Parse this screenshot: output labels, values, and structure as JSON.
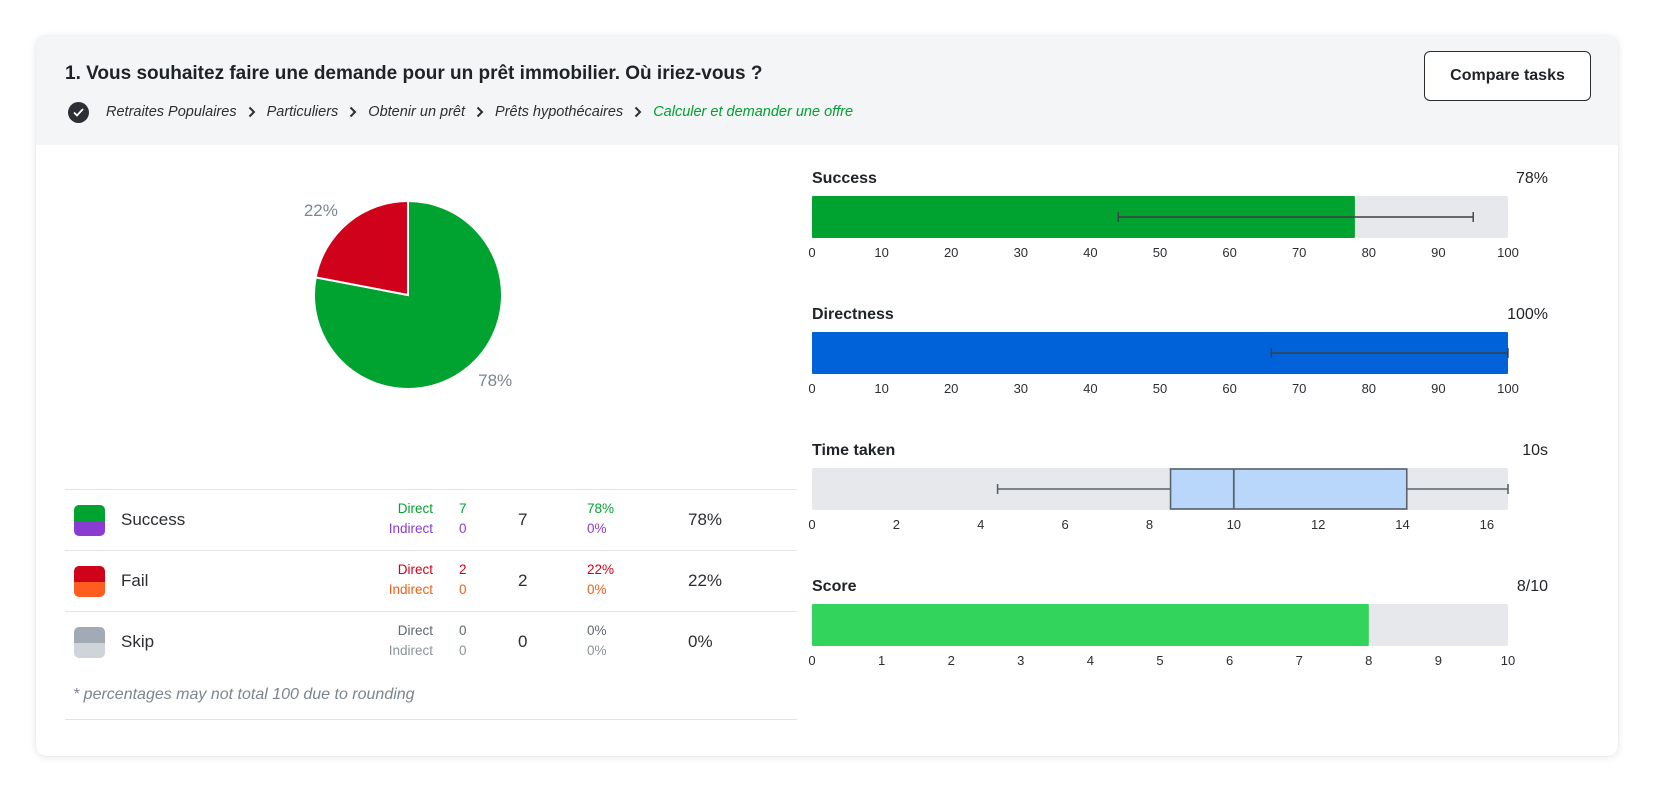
{
  "header": {
    "task_title": "1. Vous souhaitez faire une demande pour un prêt immobilier. Où iriez-vous ?",
    "compare_button": "Compare tasks",
    "breadcrumb": [
      "Retraites Populaires",
      "Particuliers",
      "Obtenir un prêt",
      "Prêts hypothécaires",
      "Calculer et demander une offre"
    ]
  },
  "colors": {
    "success_direct": "#00a32f",
    "success_indirect": "#8a3bd1",
    "fail_direct": "#d0021b",
    "fail_indirect": "#ff5d1f",
    "skip_direct": "#a2abb5",
    "skip_indirect": "#cfd4da",
    "directness": "#0062d8",
    "timebox": "#b8d7fb",
    "score": "#33d45b",
    "track": "#e6e8eb"
  },
  "legend": {
    "rows": [
      {
        "label": "Success",
        "direct_label": "Direct",
        "direct": "7",
        "indirect_label": "Indirect",
        "indirect": "0",
        "total": "7",
        "direct_pct": "78%",
        "indirect_pct": "0%",
        "pct": "78%"
      },
      {
        "label": "Fail",
        "direct_label": "Direct",
        "direct": "2",
        "indirect_label": "Indirect",
        "indirect": "0",
        "total": "2",
        "direct_pct": "22%",
        "indirect_pct": "0%",
        "pct": "22%"
      },
      {
        "label": "Skip",
        "direct_label": "Direct",
        "direct": "0",
        "indirect_label": "Indirect",
        "indirect": "0",
        "total": "0",
        "direct_pct": "0%",
        "indirect_pct": "0%",
        "pct": "0%"
      }
    ],
    "footnote": "* percentages may not total 100 due to rounding"
  },
  "chart_data": [
    {
      "type": "pie",
      "slices": [
        {
          "name": "Success",
          "value": 78,
          "label": "78%",
          "color": "#00a32f"
        },
        {
          "name": "Fail",
          "value": 22,
          "label": "22%",
          "color": "#d0021b"
        }
      ]
    },
    {
      "type": "bar",
      "title": "Success",
      "value_label": "78%",
      "value": 78,
      "error": [
        44,
        95
      ],
      "xlim": [
        0,
        100
      ],
      "ticks": [
        "0",
        "10",
        "20",
        "30",
        "40",
        "50",
        "60",
        "70",
        "80",
        "90",
        "100"
      ],
      "color": "#00a32f"
    },
    {
      "type": "bar",
      "title": "Directness",
      "value_label": "100%",
      "value": 100,
      "error": [
        66,
        100
      ],
      "xlim": [
        0,
        100
      ],
      "ticks": [
        "0",
        "10",
        "20",
        "30",
        "40",
        "50",
        "60",
        "70",
        "80",
        "90",
        "100"
      ],
      "color": "#0062d8"
    },
    {
      "type": "box",
      "title": "Time taken",
      "value_label": "10s",
      "whisker_low": 4.4,
      "q1": 8.5,
      "median": 10,
      "q3": 14.1,
      "whisker_high": 16.5,
      "xlim": [
        0,
        16.5
      ],
      "ticks": [
        "0",
        "2",
        "4",
        "6",
        "8",
        "10",
        "12",
        "14",
        "16"
      ],
      "color": "#b8d7fb"
    },
    {
      "type": "bar",
      "title": "Score",
      "value_label": "8/10",
      "value": 8,
      "xlim": [
        0,
        10
      ],
      "ticks": [
        "0",
        "1",
        "2",
        "3",
        "4",
        "5",
        "6",
        "7",
        "8",
        "9",
        "10"
      ],
      "color": "#33d45b"
    }
  ]
}
